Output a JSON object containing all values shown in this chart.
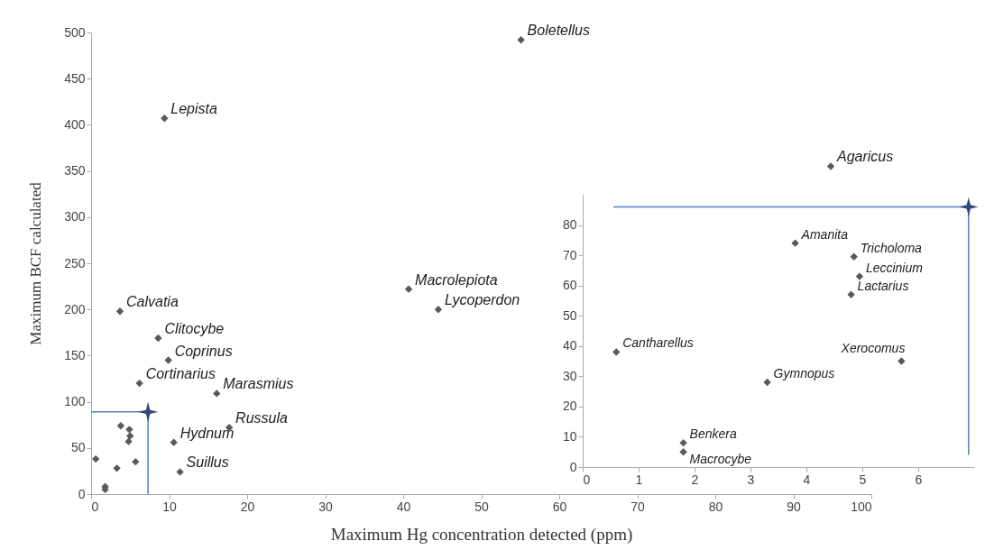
{
  "chart_data": [
    {
      "type": "scatter",
      "xlabel": "Maximum Hg concentration detected (ppm)",
      "ylabel": "Maximum BCF calculated",
      "xlim": [
        0,
        100
      ],
      "xticks": [
        0,
        10,
        20,
        30,
        40,
        50,
        60,
        70,
        80,
        90,
        100
      ],
      "ylim": [
        0,
        500
      ],
      "yticks": [
        0,
        50,
        100,
        150,
        200,
        250,
        300,
        350,
        400,
        450,
        500
      ],
      "marker": "diamond",
      "series": [
        {
          "color": "#595959",
          "x": [
            55.1,
            9.4,
            94.8,
            40.7,
            44.5,
            3.7,
            8.6,
            9.9,
            6.2,
            16.1,
            17.7,
            10.6,
            11.4,
            0.6,
            1.8,
            1.8,
            3.3,
            3.8,
            4.9,
            5,
            4.8,
            5.7
          ],
          "values": [
            492,
            407,
            355,
            222,
            200,
            198,
            169,
            145,
            120,
            109,
            72,
            56,
            24,
            38,
            8,
            5,
            28,
            74,
            70,
            63,
            57,
            35
          ]
        },
        {
          "type": "line",
          "color": "#4f81bd",
          "marker": "none",
          "x": [
            0,
            7.3,
            7.3
          ],
          "values": [
            89,
            89,
            0
          ]
        },
        {
          "type": "scatter",
          "color": "#2e4a7a",
          "marker": "star",
          "x": [
            7.3
          ],
          "values": [
            89
          ]
        }
      ],
      "annotations": [
        {
          "text": "Boletellus",
          "x": 55.1,
          "y": 492
        },
        {
          "text": "Lepista",
          "x": 9.4,
          "y": 407
        },
        {
          "text": "Agaricus",
          "x": 94.8,
          "y": 355
        },
        {
          "text": "Macrolepiota",
          "x": 40.7,
          "y": 222
        },
        {
          "text": "Lycoperdon",
          "x": 44.5,
          "y": 200
        },
        {
          "text": "Calvatia",
          "x": 3.7,
          "y": 198
        },
        {
          "text": "Clitocybe",
          "x": 8.6,
          "y": 169
        },
        {
          "text": "Coprinus",
          "x": 9.9,
          "y": 145
        },
        {
          "text": "Cortinarius",
          "x": 6.2,
          "y": 120
        },
        {
          "text": "Marasmius",
          "x": 16.1,
          "y": 109
        },
        {
          "text": "Russula",
          "x": 17.7,
          "y": 72
        },
        {
          "text": "Hydnum",
          "x": 10.6,
          "y": 56
        },
        {
          "text": "Suillus",
          "x": 11.4,
          "y": 24
        }
      ]
    },
    {
      "type": "scatter",
      "xlim": [
        0,
        7
      ],
      "xticks": [
        0,
        1,
        2,
        3,
        4,
        5,
        6
      ],
      "ylim": [
        0,
        90
      ],
      "yticks": [
        0,
        10,
        20,
        30,
        40,
        50,
        60,
        70,
        80
      ],
      "marker": "diamond",
      "series": [
        {
          "color": "#595959",
          "x": [
            0.6,
            1.8,
            1.8,
            3.3,
            3.8,
            4.85,
            4.95,
            4.8,
            5.7
          ],
          "values": [
            38,
            8,
            5,
            28,
            74,
            69.5,
            63,
            57,
            35
          ]
        },
        {
          "type": "line",
          "color": "#4f81bd",
          "marker": "none",
          "x": [
            0.55,
            6.9,
            6.9
          ],
          "values": [
            86,
            86,
            4
          ]
        },
        {
          "type": "scatter",
          "color": "#2e4a7a",
          "marker": "star",
          "x": [
            6.9
          ],
          "values": [
            86
          ]
        }
      ],
      "annotations": [
        {
          "text": "Cantharellus",
          "x": 0.6,
          "y": 38
        },
        {
          "text": "Benkera",
          "x": 1.8,
          "y": 8
        },
        {
          "text": "Macrocybe",
          "x": 1.8,
          "y": 5
        },
        {
          "text": "Gymnopus",
          "x": 3.3,
          "y": 28
        },
        {
          "text": "Amanita",
          "x": 3.8,
          "y": 74
        },
        {
          "text": "Tricholoma",
          "x": 4.85,
          "y": 69.5
        },
        {
          "text": "Leccinium",
          "x": 4.95,
          "y": 63
        },
        {
          "text": "Lactarius",
          "x": 4.8,
          "y": 57
        },
        {
          "text": "Xerocomus",
          "x": 5.7,
          "y": 35
        }
      ]
    }
  ]
}
